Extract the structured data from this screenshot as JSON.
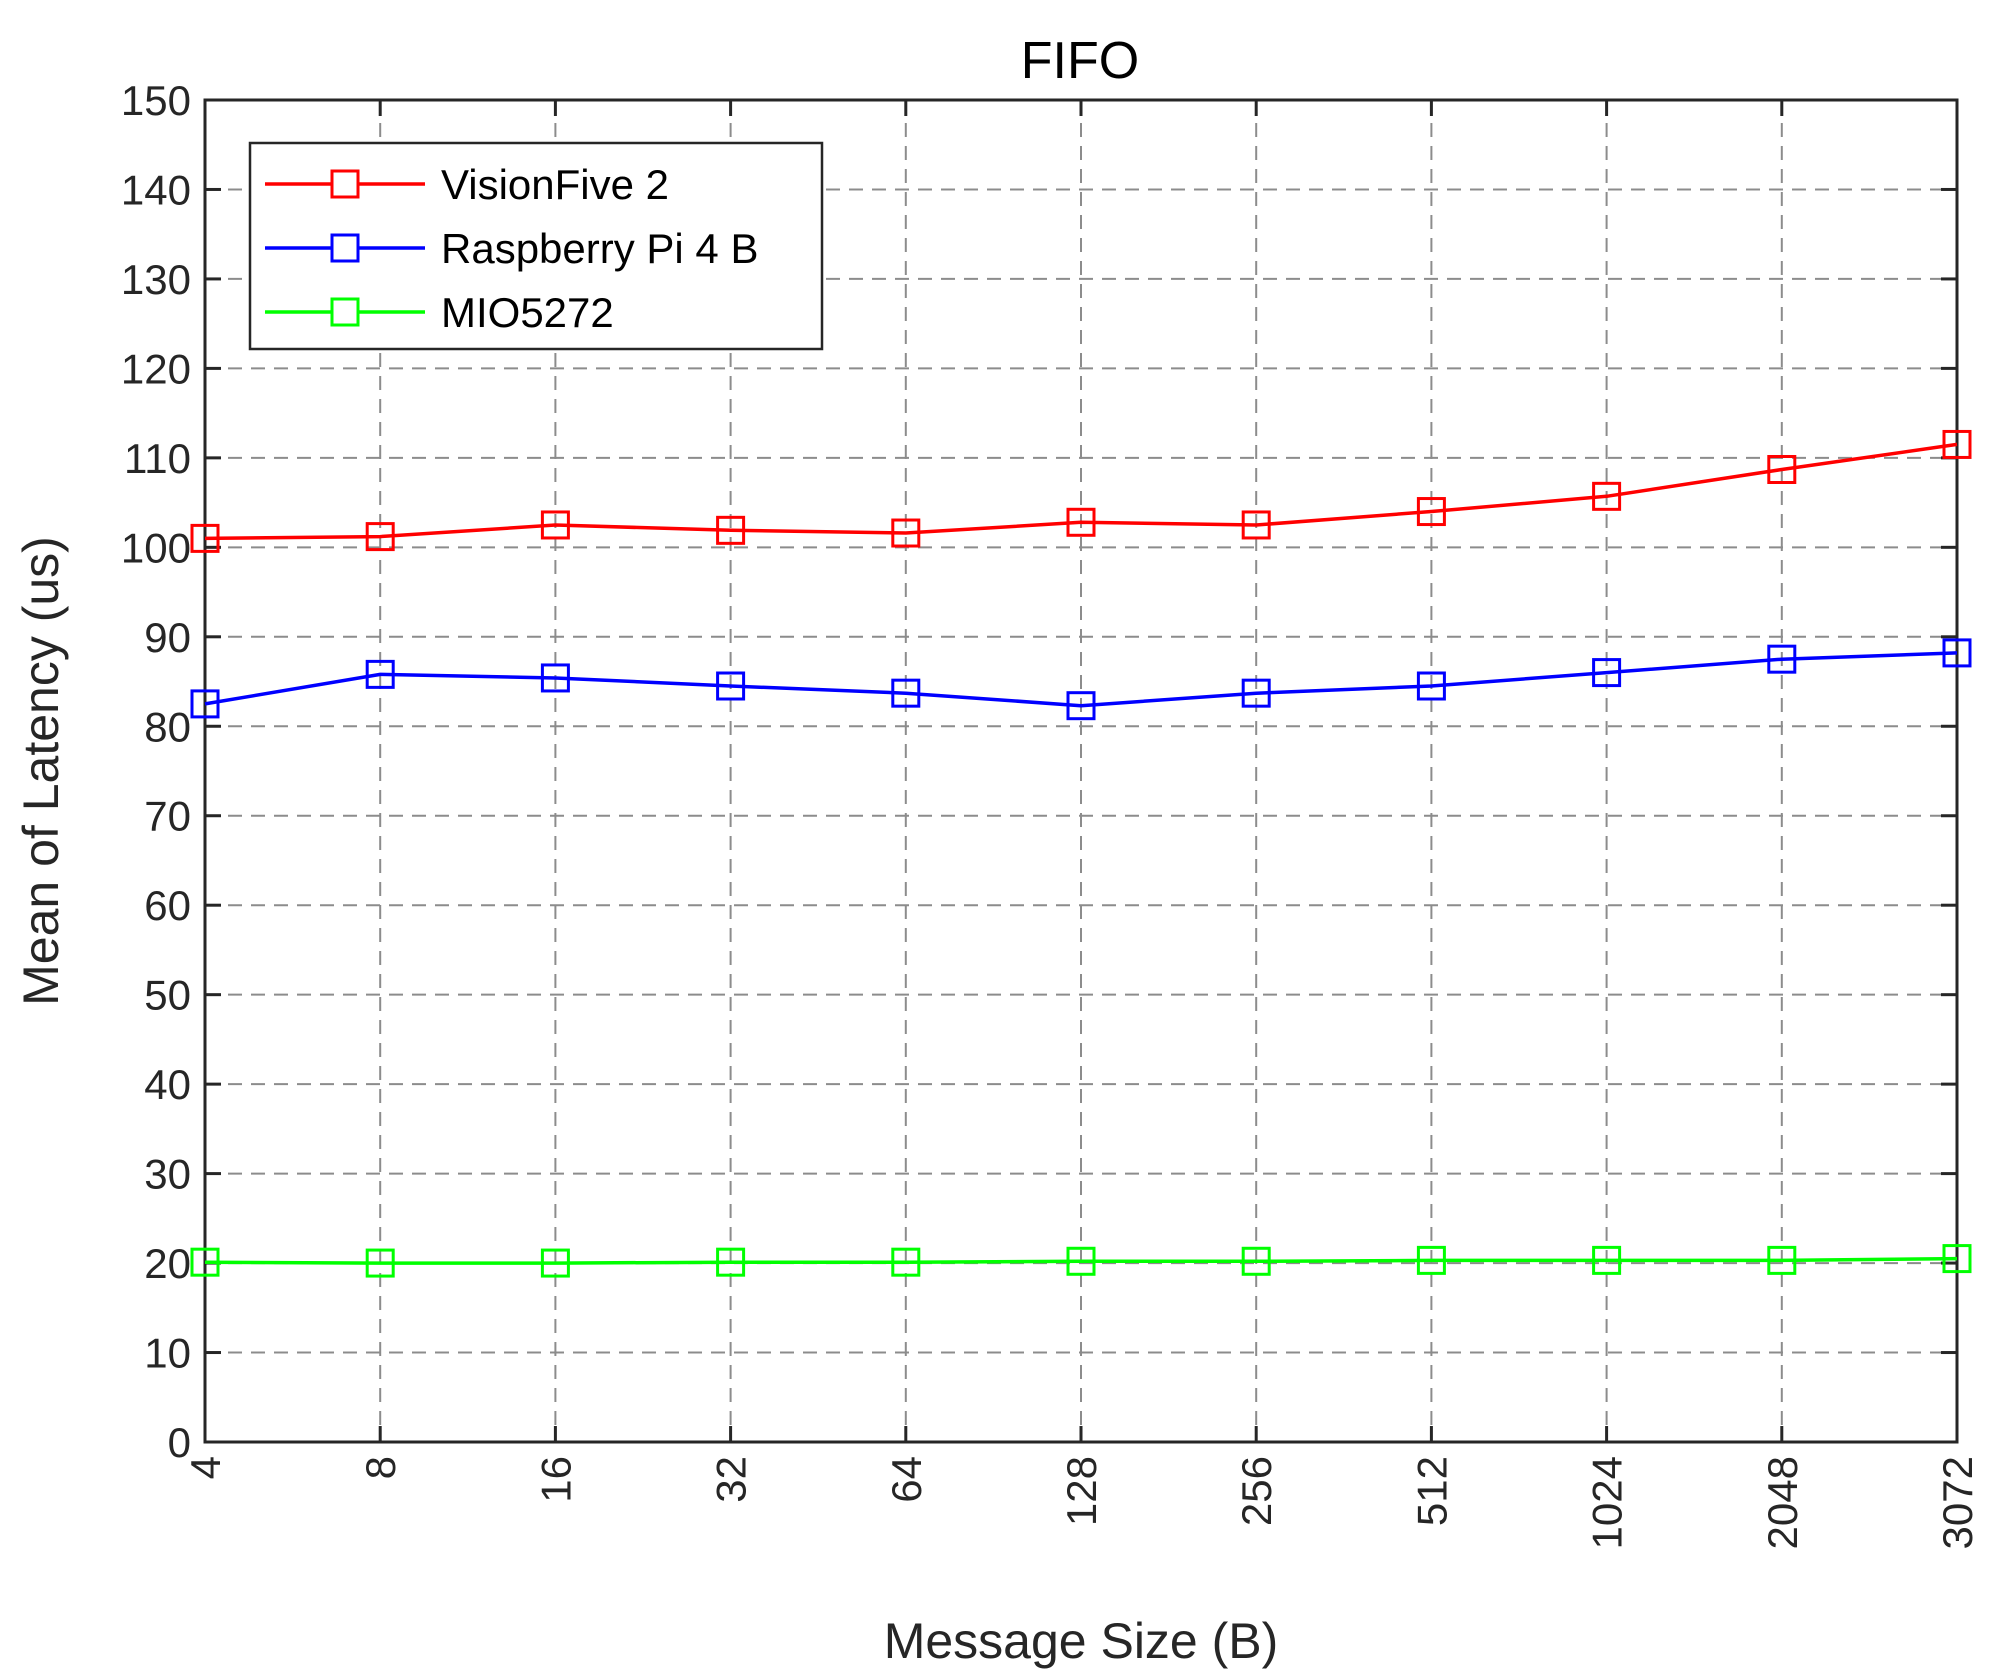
{
  "chart_data": {
    "type": "line",
    "title": "FIFO",
    "xlabel": "Message Size (B)",
    "ylabel": "Mean of Latency (us)",
    "categories": [
      "4",
      "8",
      "16",
      "32",
      "64",
      "128",
      "256",
      "512",
      "1024",
      "2048",
      "3072"
    ],
    "ylim": [
      0,
      150
    ],
    "yticks": [
      0,
      10,
      20,
      30,
      40,
      50,
      60,
      70,
      80,
      90,
      100,
      110,
      120,
      130,
      140,
      150
    ],
    "grid": true,
    "marker": "square",
    "legend_position": "top-left",
    "series": [
      {
        "name": "VisionFive 2",
        "color": "#ff0000",
        "values": [
          101.0,
          101.2,
          102.5,
          101.9,
          101.6,
          102.8,
          102.5,
          104.0,
          105.7,
          108.7,
          111.5
        ]
      },
      {
        "name": "Raspberry Pi 4 B",
        "color": "#0000ff",
        "values": [
          82.5,
          85.8,
          85.4,
          84.5,
          83.7,
          82.3,
          83.7,
          84.5,
          86.0,
          87.5,
          88.2
        ]
      },
      {
        "name": "MIO5272",
        "color": "#00ff00",
        "values": [
          20.1,
          20.0,
          20.0,
          20.1,
          20.1,
          20.2,
          20.2,
          20.3,
          20.3,
          20.3,
          20.5
        ]
      }
    ]
  }
}
